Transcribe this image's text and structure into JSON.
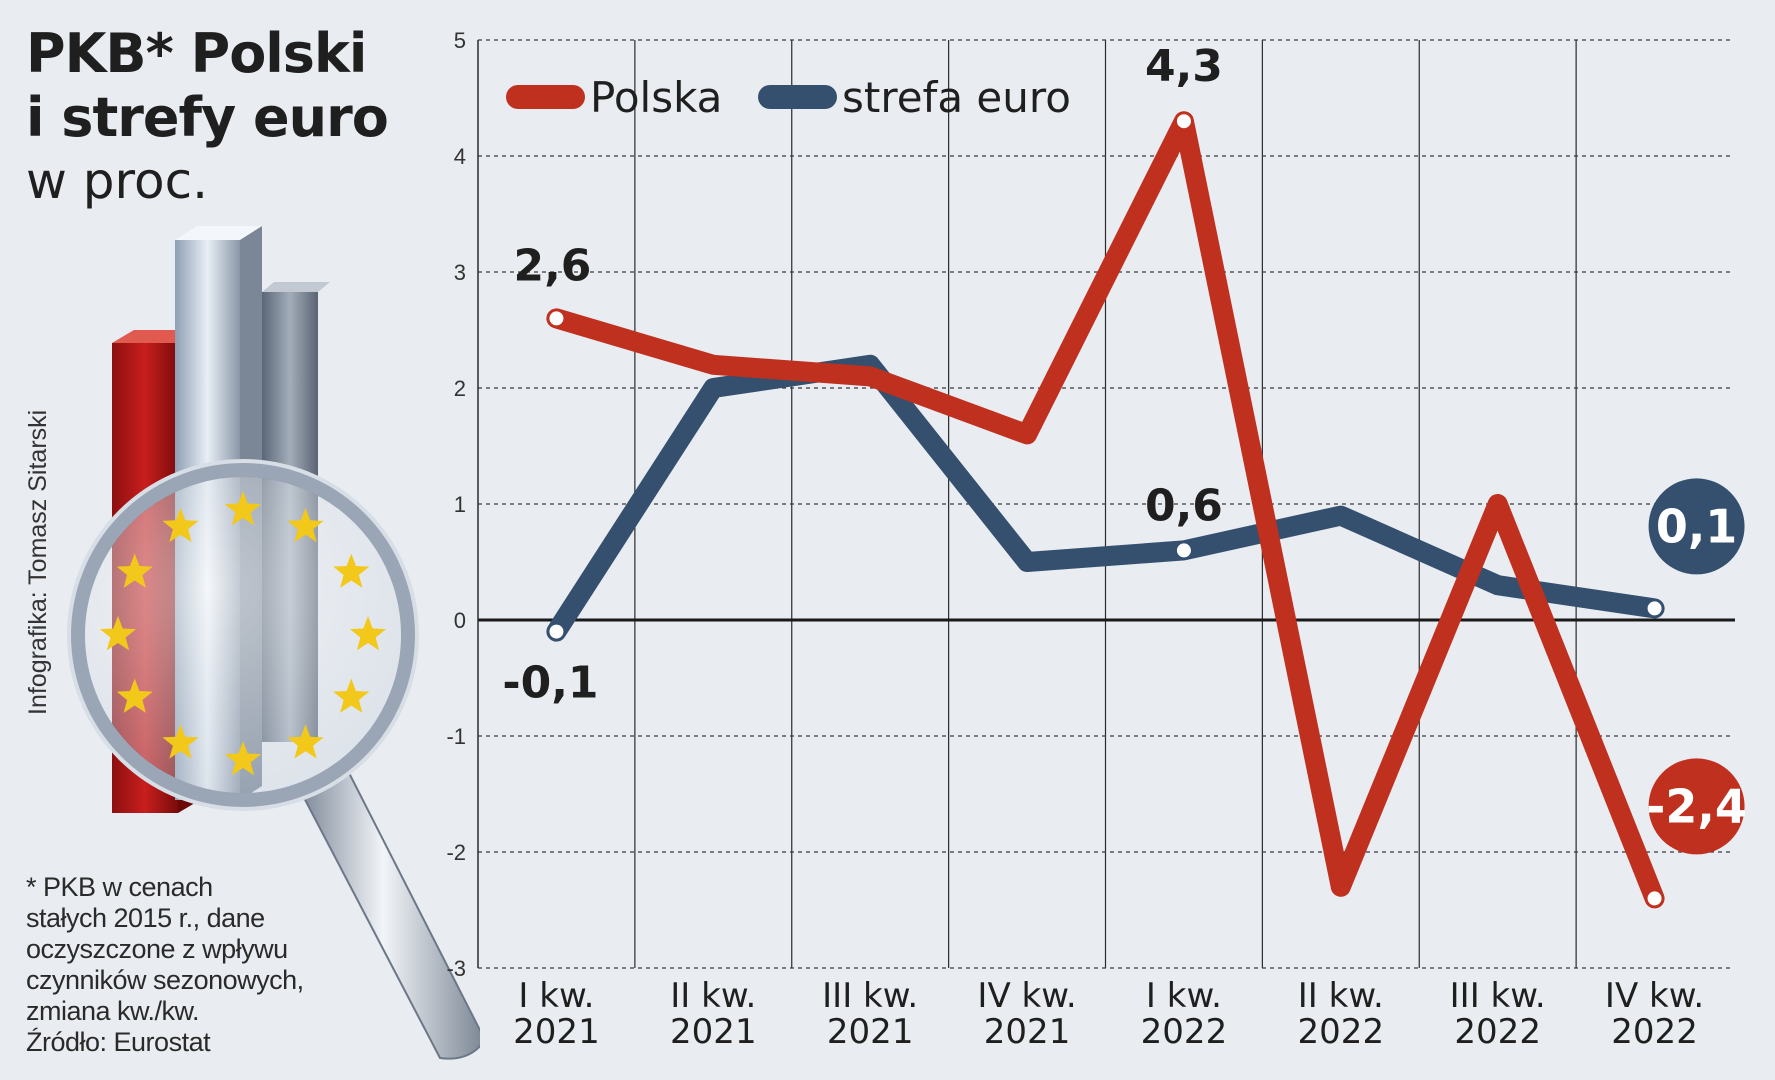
{
  "header": {
    "title_line1": "PKB* Polski",
    "title_line2": "i strefy euro",
    "subtitle": "w proc."
  },
  "credit": "Infografika: Tomasz Sitarski",
  "footnote": {
    "lines": [
      "* PKB w cenach",
      "stałych 2015 r., dane",
      "oczyszczone z wpływu",
      "czynników sezonowych,",
      "zmiana kw./kw.",
      "Źródło: Eurostat"
    ]
  },
  "colors": {
    "polska": "#c0301f",
    "strefa": "#34506e",
    "background": "#e9ecf1"
  },
  "chart_data": {
    "type": "line",
    "title": "PKB* Polski i strefy euro",
    "subtitle": "w proc.",
    "categories": [
      [
        "I kw.",
        "2021"
      ],
      [
        "II kw.",
        "2021"
      ],
      [
        "III kw.",
        "2021"
      ],
      [
        "IV kw.",
        "2021"
      ],
      [
        "I kw.",
        "2022"
      ],
      [
        "II kw.",
        "2022"
      ],
      [
        "III kw.",
        "2022"
      ],
      [
        "IV kw.",
        "2022"
      ]
    ],
    "ylim": [
      -3,
      5
    ],
    "yticks": [
      -3,
      -2,
      -1,
      0,
      1,
      2,
      3,
      4,
      5
    ],
    "grid": true,
    "legend_position": "top-left",
    "series": [
      {
        "name": "Polska",
        "color": "#c0301f",
        "values": [
          2.6,
          2.2,
          2.1,
          1.6,
          4.3,
          -2.3,
          1.0,
          -2.4
        ]
      },
      {
        "name": "strefa euro",
        "color": "#34506e",
        "values": [
          -0.1,
          2.0,
          2.2,
          0.5,
          0.6,
          0.9,
          0.3,
          0.1
        ]
      }
    ],
    "labels": [
      {
        "series": 0,
        "index": 0,
        "text": "2,6"
      },
      {
        "series": 0,
        "index": 4,
        "text": "4,3"
      },
      {
        "series": 0,
        "index": 7,
        "text": "-2,4",
        "badge": true
      },
      {
        "series": 1,
        "index": 0,
        "text": "-0,1"
      },
      {
        "series": 1,
        "index": 4,
        "text": "0,6"
      },
      {
        "series": 1,
        "index": 7,
        "text": "0,1",
        "badge": true
      }
    ]
  }
}
